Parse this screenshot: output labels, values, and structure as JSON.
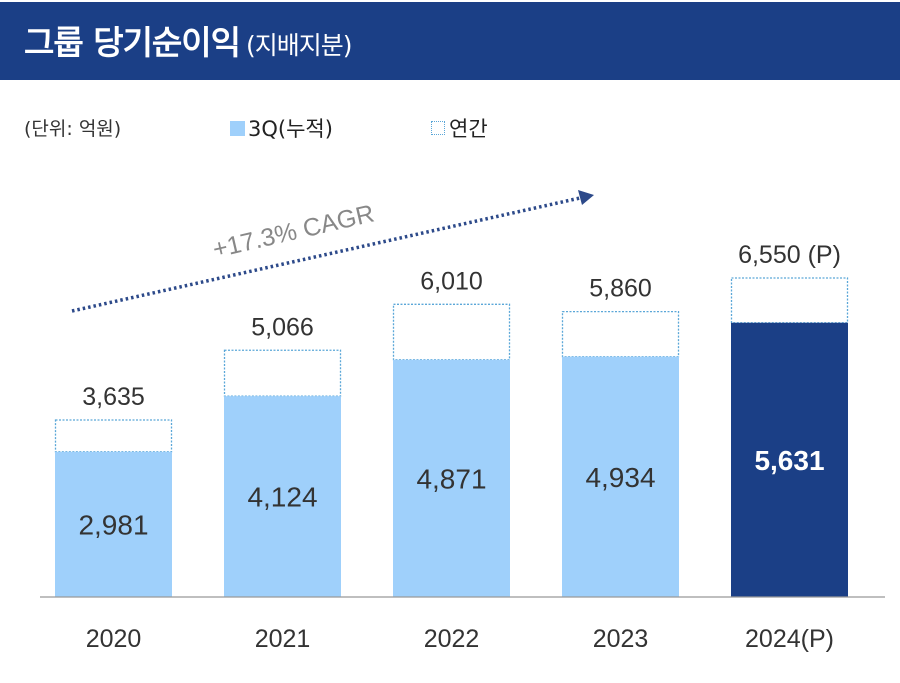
{
  "header": {
    "title": "그룹 당기순이익",
    "subtitle": "(지배지분)"
  },
  "unit_label": "(단위: 억원)",
  "legend": [
    {
      "label": "3Q(누적)",
      "style": "filled",
      "color": "#9fd0fb"
    },
    {
      "label": "연간",
      "style": "dotted-outline",
      "color": "#5ba7d8"
    }
  ],
  "colors": {
    "header": "#1b3f86",
    "bar_3q": "#9fd0fb",
    "bar_highlight": "#1b3f86",
    "annual_outline": "#5ba7d8",
    "cagr_arrow": "#2d4a8a",
    "cagr_text": "#888888"
  },
  "chart_data": {
    "type": "bar",
    "categories": [
      "2020",
      "2021",
      "2022",
      "2023",
      "2024(P)"
    ],
    "series": [
      {
        "name": "3Q(누적)",
        "values": [
          2981,
          4124,
          4871,
          4934,
          5631
        ],
        "labels": [
          "2,981",
          "4,124",
          "4,871",
          "4,934",
          "5,631"
        ]
      },
      {
        "name": "연간",
        "values": [
          3635,
          5066,
          6010,
          5860,
          6550
        ],
        "labels": [
          "3,635",
          "5,066",
          "6,010",
          "5,860",
          "6,550 (P)"
        ]
      }
    ],
    "highlight_category": "2024(P)",
    "annotation": "+17.3% CAGR",
    "ylim": [
      0,
      7000
    ],
    "grid": false
  }
}
